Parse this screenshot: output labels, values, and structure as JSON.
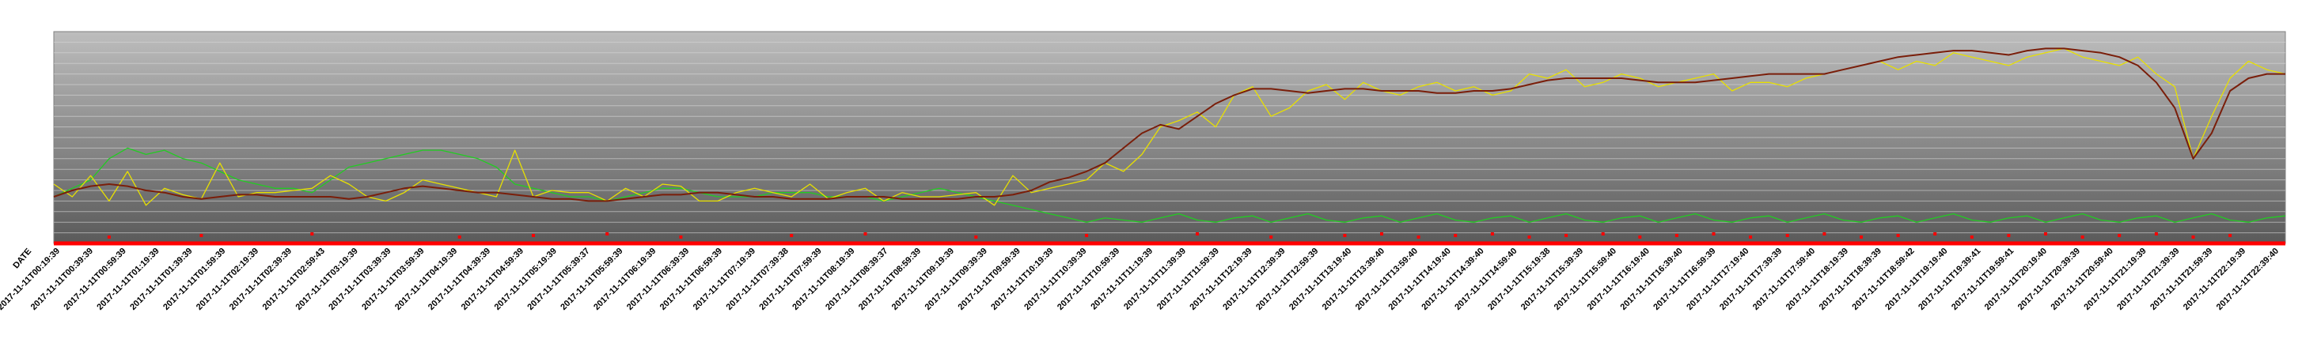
{
  "chart_data": {
    "type": "line",
    "x_field_label": "DATE",
    "grid": true,
    "legend": "none",
    "colors": {
      "series_yellow": "#e8e000",
      "series_green": "#22cc22",
      "series_brown": "#7a1e0a",
      "series_red": "#ff0000",
      "plot_top": "#bdbdbd",
      "plot_bottom": "#5a5a5a",
      "grid": "#d9d9d9"
    },
    "ylim": [
      0,
      100
    ],
    "x_tick_labels": [
      "2017-11-11T00:19:39",
      "2017-11-11T00:39:39",
      "2017-11-11T00:59:39",
      "2017-11-11T01:19:39",
      "2017-11-11T01:39:39",
      "2017-11-11T01:59:39",
      "2017-11-11T02:19:39",
      "2017-11-11T02:39:39",
      "2017-11-11T02:59:43",
      "2017-11-11T03:19:39",
      "2017-11-11T03:39:39",
      "2017-11-11T03:59:39",
      "2017-11-11T04:19:39",
      "2017-11-11T04:39:39",
      "2017-11-11T04:59:39",
      "2017-11-11T05:19:39",
      "2017-11-11T05:39:37",
      "2017-11-11T05:59:39",
      "2017-11-11T06:19:39",
      "2017-11-11T06:39:39",
      "2017-11-11T06:59:39",
      "2017-11-11T07:19:39",
      "2017-11-11T07:39:38",
      "2017-11-11T07:59:39",
      "2017-11-11T08:19:39",
      "2017-11-11T08:39:37",
      "2017-11-11T08:59:39",
      "2017-11-11T09:19:39",
      "2017-11-11T09:39:39",
      "2017-11-11T09:59:39",
      "2017-11-11T10:19:39",
      "2017-11-11T10:39:39",
      "2017-11-11T10:59:39",
      "2017-11-11T11:19:39",
      "2017-11-11T11:39:39",
      "2017-11-11T11:59:39",
      "2017-11-11T12:19:39",
      "2017-11-11T12:39:39",
      "2017-11-11T12:59:39",
      "2017-11-11T13:19:40",
      "2017-11-11T13:39:40",
      "2017-11-11T13:59:40",
      "2017-11-11T14:19:40",
      "2017-11-11T14:39:40",
      "2017-11-11T14:59:40",
      "2017-11-11T15:19:38",
      "2017-11-11T15:39:39",
      "2017-11-11T15:59:40",
      "2017-11-11T16:19:40",
      "2017-11-11T16:39:40",
      "2017-11-11T16:59:39",
      "2017-11-11T17:19:40",
      "2017-11-11T17:39:39",
      "2017-11-11T17:59:40",
      "2017-11-11T18:19:39",
      "2017-11-11T18:39:39",
      "2017-11-11T18:59:42",
      "2017-11-11T19:19:40",
      "2017-11-11T19:39:41",
      "2017-11-11T19:59:41",
      "2017-11-11T20:19:40",
      "2017-11-11T20:39:39",
      "2017-11-11T20:59:40",
      "2017-11-11T21:19:39",
      "2017-11-11T21:39:39",
      "2017-11-11T21:59:39",
      "2017-11-11T22:19:39",
      "2017-11-11T22:39:40"
    ],
    "series": [
      {
        "key": "yellow",
        "color": "#e8e000",
        "values": [
          28,
          22,
          32,
          20,
          34,
          18,
          26,
          23,
          21,
          38,
          22,
          24,
          24,
          25,
          26,
          32,
          28,
          22,
          20,
          24,
          30,
          28,
          26,
          24,
          22,
          44,
          22,
          25,
          24,
          24,
          20,
          26,
          22,
          28,
          27,
          20,
          20,
          24,
          26,
          24,
          22,
          28,
          21,
          24,
          26,
          20,
          24,
          22,
          22,
          23,
          24,
          18,
          32,
          24,
          26,
          28,
          30,
          38,
          34,
          42,
          55,
          58,
          62,
          55,
          70,
          74,
          60,
          64,
          72,
          75,
          68,
          76,
          72,
          70,
          74,
          76,
          72,
          74,
          70,
          72,
          80,
          78,
          82,
          74,
          76,
          80,
          78,
          74,
          76,
          78,
          80,
          72,
          76,
          76,
          74,
          78,
          80,
          82,
          84,
          86,
          82,
          86,
          84,
          90,
          88,
          86,
          84,
          88,
          90,
          92,
          88,
          86,
          84,
          88,
          80,
          74,
          40,
          60,
          78,
          86,
          82,
          80
        ]
      },
      {
        "key": "brown",
        "color": "#7a1e0a",
        "values": [
          22,
          25,
          27,
          28,
          27,
          25,
          24,
          22,
          21,
          22,
          23,
          23,
          22,
          22,
          22,
          22,
          21,
          22,
          24,
          26,
          27,
          26,
          25,
          24,
          24,
          23,
          22,
          21,
          21,
          20,
          20,
          21,
          22,
          23,
          23,
          24,
          24,
          23,
          22,
          22,
          21,
          21,
          21,
          22,
          22,
          22,
          21,
          21,
          21,
          21,
          22,
          22,
          23,
          25,
          29,
          31,
          34,
          38,
          45,
          52,
          56,
          54,
          60,
          66,
          70,
          73,
          73,
          72,
          71,
          72,
          73,
          73,
          72,
          72,
          72,
          71,
          71,
          72,
          72,
          73,
          75,
          77,
          78,
          78,
          78,
          78,
          77,
          76,
          76,
          76,
          77,
          78,
          79,
          80,
          80,
          80,
          80,
          82,
          84,
          86,
          88,
          89,
          90,
          91,
          91,
          90,
          89,
          91,
          92,
          92,
          91,
          90,
          88,
          84,
          76,
          64,
          40,
          52,
          72,
          78,
          80,
          80
        ]
      },
      {
        "key": "green",
        "color": "#22cc22",
        "values": [
          22,
          26,
          30,
          40,
          45,
          42,
          44,
          40,
          38,
          34,
          30,
          28,
          26,
          26,
          24,
          30,
          36,
          38,
          40,
          42,
          44,
          44,
          42,
          40,
          36,
          28,
          26,
          24,
          22,
          22,
          20,
          22,
          24,
          26,
          26,
          24,
          22,
          22,
          22,
          24,
          24,
          24,
          22,
          22,
          22,
          20,
          22,
          24,
          26,
          24,
          22,
          20,
          18,
          16,
          14,
          12,
          10,
          12,
          11,
          10,
          12,
          14,
          11,
          10,
          12,
          13,
          10,
          12,
          14,
          11,
          10,
          12,
          13,
          10,
          12,
          14,
          11,
          10,
          12,
          13,
          10,
          12,
          14,
          11,
          10,
          12,
          13,
          10,
          12,
          14,
          11,
          10,
          12,
          13,
          10,
          12,
          14,
          11,
          10,
          12,
          13,
          10,
          12,
          14,
          11,
          10,
          12,
          13,
          10,
          12,
          14,
          11,
          10,
          12,
          13,
          10,
          12,
          14,
          11,
          10,
          12,
          13
        ]
      },
      {
        "key": "red",
        "color": "#ff0000",
        "values": [
          0,
          0,
          0,
          0,
          0,
          0,
          0,
          0,
          0,
          0,
          0,
          0,
          0,
          0,
          0,
          0,
          0,
          0,
          0,
          0,
          0,
          0,
          0,
          0,
          0,
          0,
          0,
          0,
          0,
          0,
          0,
          0,
          0,
          0,
          0,
          0,
          0,
          0,
          0,
          0,
          0,
          0,
          0,
          0,
          0,
          0,
          0,
          0,
          0,
          0,
          0,
          0,
          0,
          0,
          0,
          0,
          0,
          0,
          0,
          0,
          0,
          0,
          0,
          0,
          0,
          0,
          0,
          0,
          0,
          0,
          0,
          0,
          0,
          0,
          0,
          0,
          0,
          0,
          0,
          0,
          0,
          0,
          0,
          0,
          0,
          0,
          0,
          0,
          0,
          0,
          0,
          0,
          0,
          0,
          0,
          0,
          0,
          0,
          0,
          0,
          0,
          0,
          0,
          0,
          0,
          0,
          0,
          0,
          0,
          0,
          0,
          0,
          0,
          0,
          0,
          0,
          0,
          0,
          0,
          0,
          0,
          0
        ]
      }
    ],
    "red_markers": [
      3,
      8,
      14,
      22,
      26,
      30,
      34,
      40,
      44,
      50,
      56,
      62,
      66,
      70,
      72,
      74,
      76,
      78,
      80,
      82,
      84,
      86,
      88,
      90,
      92,
      94,
      96,
      98,
      100,
      102,
      104,
      106,
      108,
      110,
      112,
      114,
      116,
      118
    ]
  }
}
